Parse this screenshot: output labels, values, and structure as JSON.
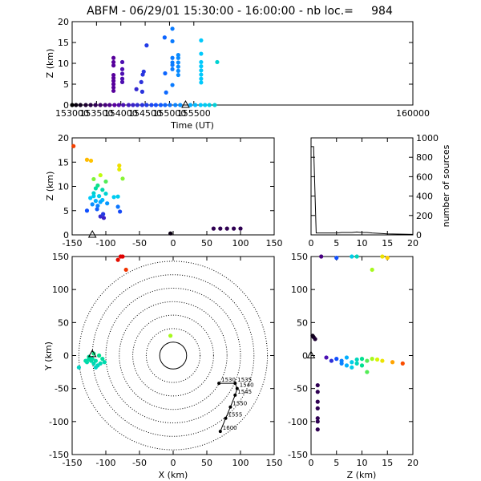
{
  "title": "ABFM - 06/29/01 15:30:00 - 16:00:00 - nb loc.=     984",
  "colors": {
    "axis": "#000000",
    "gradient": [
      "#000000",
      "#5a00a0",
      "#1050ff",
      "#00c8ff",
      "#00e090",
      "#d0ff00",
      "#ffd000",
      "#ff6000",
      "#e00000"
    ]
  },
  "chart_data": [
    {
      "id": "time-height",
      "type": "scatter",
      "xlabel": "Time (UT)",
      "ylabel": "Z (km)",
      "xlim": [
        153000,
        160000
      ],
      "ylim": [
        0,
        20
      ],
      "xticks": [
        "153000",
        "153500",
        "154000",
        "154500",
        "155000",
        "155500",
        "160000"
      ],
      "yticks": [
        "0",
        "5",
        "10",
        "15",
        "20"
      ],
      "station_marker": {
        "x": 155330,
        "y": 0,
        "symbol": "triangle"
      },
      "points": [
        [
          153000,
          0
        ],
        [
          153080,
          0
        ],
        [
          153170,
          0
        ],
        [
          153280,
          0
        ],
        [
          153380,
          0
        ],
        [
          153480,
          0
        ],
        [
          153580,
          0
        ],
        [
          153680,
          0
        ],
        [
          153770,
          0
        ],
        [
          153870,
          0
        ],
        [
          153960,
          0
        ],
        [
          154050,
          0
        ],
        [
          154160,
          0
        ],
        [
          154250,
          0
        ],
        [
          154340,
          0
        ],
        [
          154440,
          0
        ],
        [
          154530,
          0
        ],
        [
          154630,
          0
        ],
        [
          154720,
          0
        ],
        [
          154820,
          0
        ],
        [
          154910,
          0
        ],
        [
          155010,
          0
        ],
        [
          155120,
          0
        ],
        [
          155220,
          0
        ],
        [
          155430,
          0
        ],
        [
          155530,
          0
        ],
        [
          155640,
          0
        ],
        [
          155730,
          0
        ],
        [
          155820,
          0
        ],
        [
          155930,
          0
        ],
        [
          153850,
          11.3
        ],
        [
          153850,
          10.3
        ],
        [
          153850,
          9.5
        ],
        [
          153850,
          7.2
        ],
        [
          153850,
          6.5
        ],
        [
          153850,
          5.8
        ],
        [
          153850,
          5.0
        ],
        [
          153850,
          4.2
        ],
        [
          153850,
          3.4
        ],
        [
          154030,
          10.3
        ],
        [
          154030,
          8.6
        ],
        [
          154030,
          7.5
        ],
        [
          154030,
          6.3
        ],
        [
          154030,
          5.5
        ],
        [
          154320,
          3.8
        ],
        [
          154420,
          5.5
        ],
        [
          154450,
          7.3
        ],
        [
          154470,
          8.0
        ],
        [
          154440,
          3.2
        ],
        [
          154530,
          14.3
        ],
        [
          154900,
          16.2
        ],
        [
          154910,
          7.6
        ],
        [
          154930,
          3.0
        ],
        [
          155060,
          18.3
        ],
        [
          155060,
          15.3
        ],
        [
          155060,
          11.3
        ],
        [
          155060,
          10.2
        ],
        [
          155060,
          9.6
        ],
        [
          155060,
          8.6
        ],
        [
          155060,
          4.8
        ],
        [
          155180,
          12.0
        ],
        [
          155180,
          11.3
        ],
        [
          155180,
          10.2
        ],
        [
          155180,
          9.2
        ],
        [
          155180,
          8.2
        ],
        [
          155180,
          7.2
        ],
        [
          155650,
          15.5
        ],
        [
          155650,
          12.3
        ],
        [
          155650,
          10.3
        ],
        [
          155650,
          9.3
        ],
        [
          155650,
          8.3
        ],
        [
          155650,
          7.3
        ],
        [
          155650,
          6.3
        ],
        [
          155650,
          5.4
        ],
        [
          155980,
          10.3
        ]
      ]
    },
    {
      "id": "x-z",
      "type": "scatter",
      "xlabel": "",
      "ylabel": "Z (km)",
      "xlim": [
        -150,
        150
      ],
      "ylim": [
        0,
        20
      ],
      "xticks": [
        "-150",
        "-100",
        "-50",
        "0",
        "50",
        "100",
        "150"
      ],
      "yticks": [
        "0",
        "5",
        "10",
        "15",
        "20"
      ],
      "station_marker": {
        "x": -120,
        "y": 0,
        "symbol": "triangle"
      },
      "points": [
        [
          -148,
          18.3
        ],
        [
          -128,
          15.5
        ],
        [
          -122,
          15.3
        ],
        [
          -118,
          11.5
        ],
        [
          -112,
          10.2
        ],
        [
          -108,
          12.3
        ],
        [
          -105,
          9.3
        ],
        [
          -100,
          11.0
        ],
        [
          -115,
          9.6
        ],
        [
          -118,
          8.6
        ],
        [
          -123,
          7.6
        ],
        [
          -120,
          6.3
        ],
        [
          -113,
          5.3
        ],
        [
          -108,
          3.8
        ],
        [
          -103,
          3.5
        ],
        [
          -128,
          5.0
        ],
        [
          -110,
          8.0
        ],
        [
          -105,
          7.2
        ],
        [
          -98,
          6.5
        ],
        [
          -115,
          7.0
        ],
        [
          -112,
          6.0
        ],
        [
          -100,
          8.5
        ],
        [
          -88,
          7.8
        ],
        [
          -82,
          7.9
        ],
        [
          -82,
          5.8
        ],
        [
          -79,
          4.8
        ],
        [
          -75,
          11.6
        ],
        [
          -80,
          14.3
        ],
        [
          -80,
          13.5
        ],
        [
          -108,
          6.8
        ],
        [
          -104,
          4.3
        ],
        [
          -118,
          8.0
        ],
        [
          -4,
          0.3
        ],
        [
          60,
          1.3
        ],
        [
          70,
          1.3
        ],
        [
          80,
          1.3
        ],
        [
          90,
          1.3
        ],
        [
          100,
          1.3
        ]
      ]
    },
    {
      "id": "source-histogram",
      "type": "line",
      "xlabel": "",
      "ylabel": "number of sources",
      "xlim": [
        0,
        20
      ],
      "ylim": [
        0,
        1000
      ],
      "xticks": [
        "0",
        "5",
        "10",
        "15",
        "20"
      ],
      "yticks": [
        "0",
        "200",
        "400",
        "600",
        "800",
        "1000"
      ],
      "x": [
        0,
        0.5,
        1,
        5,
        6,
        8,
        9,
        10,
        11,
        12,
        15,
        20
      ],
      "y": [
        910,
        910,
        20,
        20,
        25,
        25,
        30,
        25,
        25,
        20,
        10,
        5
      ]
    },
    {
      "id": "plan-view",
      "type": "scatter",
      "xlabel": "X (km)",
      "ylabel": "Y (km)",
      "xlim": [
        -150,
        150
      ],
      "ylim": [
        -150,
        150
      ],
      "xticks": [
        "-150",
        "-100",
        "-50",
        "0",
        "50",
        "100",
        "150"
      ],
      "yticks": [
        "-150",
        "-100",
        "-50",
        "0",
        "50",
        "100",
        "150"
      ],
      "range_rings_km": [
        20,
        40,
        60,
        80,
        100,
        120,
        140
      ],
      "station_marker": {
        "x": -120,
        "y": 2,
        "symbol": "triangle"
      },
      "points": [
        [
          -78,
          150
        ],
        [
          -82,
          145
        ],
        [
          -75,
          150
        ],
        [
          -70,
          130
        ],
        [
          -4,
          30
        ],
        [
          -125,
          -2
        ],
        [
          -120,
          -5
        ],
        [
          -115,
          -8
        ],
        [
          -112,
          -15
        ],
        [
          -118,
          -12
        ],
        [
          -122,
          -8
        ],
        [
          -128,
          -10
        ],
        [
          -105,
          -5
        ],
        [
          -110,
          0
        ],
        [
          -118,
          3
        ],
        [
          -125,
          -5
        ],
        [
          -130,
          -8
        ],
        [
          -140,
          -18
        ],
        [
          -115,
          -18
        ],
        [
          -108,
          -12
        ],
        [
          -102,
          -10
        ]
      ],
      "track": {
        "points": [
          [
            70,
            -115
          ],
          [
            78,
            -95
          ],
          [
            85,
            -78
          ],
          [
            92,
            -60
          ],
          [
            95,
            -50
          ],
          [
            92,
            -42
          ],
          [
            68,
            -42
          ]
        ],
        "labels": [
          "1530",
          "1535",
          "1540",
          "1545",
          "1550",
          "1555",
          "1600"
        ]
      }
    },
    {
      "id": "z-y",
      "type": "scatter",
      "xlabel": "Z (km)",
      "ylabel": "",
      "xlim": [
        0,
        20
      ],
      "ylim": [
        -150,
        150
      ],
      "xticks": [
        "0",
        "5",
        "10",
        "15",
        "20"
      ],
      "yticks": [
        "-150",
        "-100",
        "-50",
        "0",
        "50",
        "100",
        "150"
      ],
      "station_marker": {
        "x": 0,
        "y": 0,
        "symbol": "triangle"
      },
      "points": [
        [
          0.3,
          30
        ],
        [
          0.5,
          28
        ],
        [
          0.8,
          25
        ],
        [
          2,
          150
        ],
        [
          5,
          148
        ],
        [
          8,
          150
        ],
        [
          9,
          150
        ],
        [
          14,
          150
        ],
        [
          15,
          148
        ],
        [
          12,
          130
        ],
        [
          5,
          -5
        ],
        [
          6,
          -8
        ],
        [
          7,
          -3
        ],
        [
          8,
          -10
        ],
        [
          9,
          -6
        ],
        [
          10,
          -5
        ],
        [
          11,
          -8
        ],
        [
          12,
          -5
        ],
        [
          13,
          -6
        ],
        [
          14,
          -8
        ],
        [
          6,
          -12
        ],
        [
          7,
          -15
        ],
        [
          8,
          -18
        ],
        [
          9,
          -12
        ],
        [
          10,
          -15
        ],
        [
          11,
          -25
        ],
        [
          4,
          -8
        ],
        [
          3,
          -3
        ],
        [
          16,
          -10
        ],
        [
          18,
          -12
        ],
        [
          1.3,
          -45
        ],
        [
          1.3,
          -55
        ],
        [
          1.3,
          -70
        ],
        [
          1.3,
          -80
        ],
        [
          1.3,
          -95
        ],
        [
          1.3,
          -100
        ],
        [
          1.3,
          -112
        ]
      ]
    }
  ]
}
